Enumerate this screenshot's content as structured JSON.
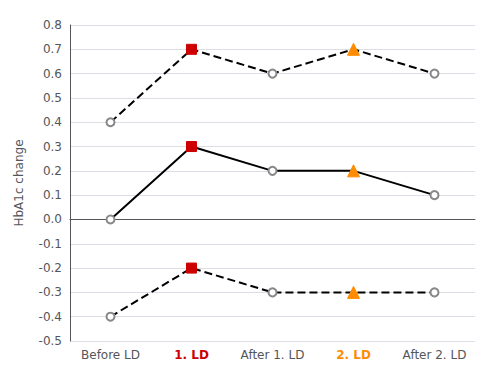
{
  "chart_data": {
    "type": "line",
    "categories": [
      "Before LD",
      "1. LD",
      "After 1. LD",
      "2. LD",
      "After 2. LD"
    ],
    "series": [
      {
        "values": [
          0.0,
          0.3,
          0.2,
          0.2,
          0.1
        ],
        "color": "#000000",
        "line_style": "solid",
        "marker": [
          "circle",
          "square",
          "circle",
          "triangle",
          "circle"
        ],
        "colors": [
          "#888888",
          "#CC0000",
          "#888888",
          "#FF8C00",
          "#888888"
        ]
      },
      {
        "values": [
          0.4,
          0.7,
          0.6,
          0.7,
          0.6
        ],
        "color": "#000000",
        "line_style": "dashed",
        "marker": [
          "circle",
          "square",
          "circle",
          "triangle",
          "circle"
        ],
        "colors": [
          "#888888",
          "#CC0000",
          "#888888",
          "#FF8C00",
          "#888888"
        ]
      },
      {
        "values": [
          -0.4,
          -0.2,
          -0.3,
          -0.3,
          -0.3
        ],
        "color": "#000000",
        "line_style": "dashed",
        "marker": [
          "circle",
          "square",
          "circle",
          "triangle",
          "circle"
        ],
        "colors": [
          "#888888",
          "#CC0000",
          "#888888",
          "#FF8C00",
          "#888888"
        ]
      }
    ],
    "ylabel": "HbA1c change",
    "ylim": [
      -0.5,
      0.8
    ],
    "yticks": [
      -0.5,
      -0.4,
      -0.3,
      -0.2,
      -0.1,
      {
        "value": 0,
        "label": "0.0"
      },
      0.1,
      0.2,
      0.3,
      0.4,
      0.5,
      0.6,
      0.7,
      0.8
    ],
    "grid": true
  }
}
